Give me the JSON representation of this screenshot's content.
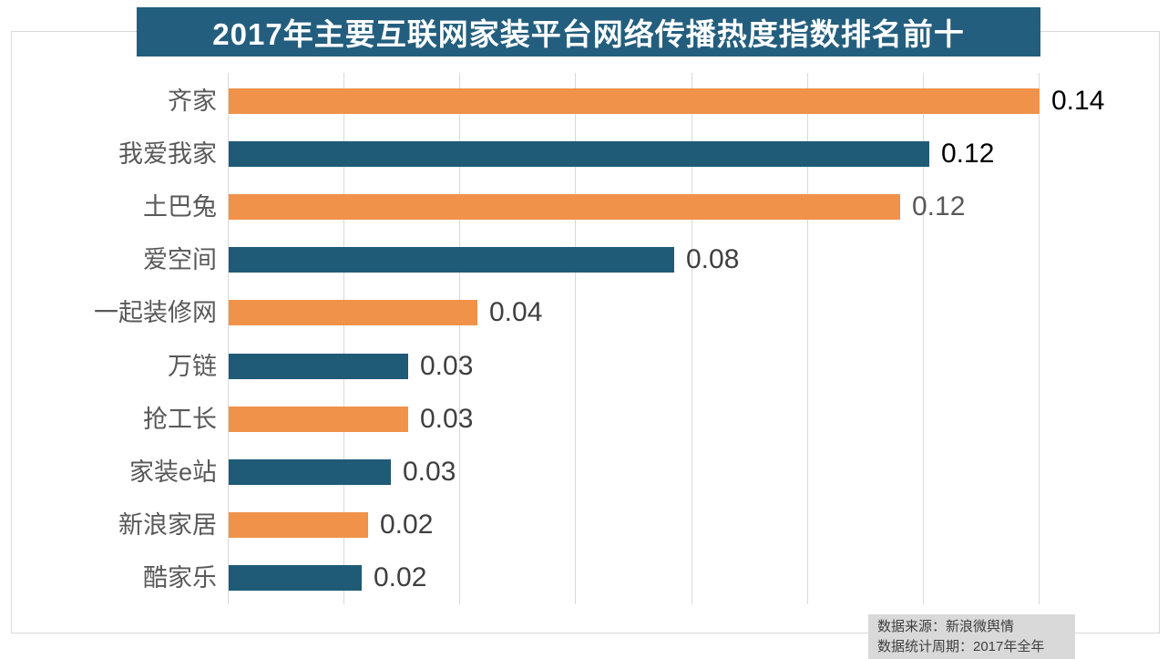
{
  "title": "2017年主要互联网家装平台网络传播热度指数排名前十",
  "colors": {
    "title_bg": "#235E7E",
    "title_text": "#FFFFFF",
    "bar_orange": "#F0924A",
    "bar_blue": "#1F5A77",
    "grid": "#D9D9D9",
    "category_label": "#595959",
    "footer_bg": "#D9D9D9",
    "footer_text": "#404040"
  },
  "chart_data": {
    "type": "bar",
    "orientation": "horizontal",
    "title": "2017年主要互联网家装平台网络传播热度指数排名前十",
    "categories": [
      "齐家",
      "我爱我家",
      "土巴兔",
      "爱空间",
      "一起装修网",
      "万链",
      "抢工长",
      "家装e站",
      "新浪家居",
      "酷家乐"
    ],
    "values": [
      0.14,
      0.12,
      0.12,
      0.08,
      0.04,
      0.03,
      0.03,
      0.03,
      0.02,
      0.02
    ],
    "value_labels": [
      "0.14",
      "0.12",
      "0.12",
      "0.08",
      "0.04",
      "0.03",
      "0.03",
      "0.03",
      "0.02",
      "0.02"
    ],
    "bar_lengths_estimated": [
      0.14,
      0.121,
      0.116,
      0.077,
      0.043,
      0.031,
      0.031,
      0.028,
      0.024,
      0.023
    ],
    "bar_colors": [
      "#F0924A",
      "#1F5A77",
      "#F0924A",
      "#1F5A77",
      "#F0924A",
      "#1F5A77",
      "#F0924A",
      "#1F5A77",
      "#F0924A",
      "#1F5A77"
    ],
    "value_label_colors": [
      "#000000",
      "#000000",
      "#595959",
      "#3F3F3F",
      "#3F3F3F",
      "#3F3F3F",
      "#3F3F3F",
      "#3F3F3F",
      "#3F3F3F",
      "#3F3F3F"
    ],
    "xlim": [
      0,
      0.14
    ],
    "gridline_interval": 0.02,
    "gridline_count": 8,
    "grid": true,
    "legend": "none",
    "xlabel": "",
    "ylabel": ""
  },
  "footer": {
    "source_line": "数据来源：新浪微舆情",
    "period_line": "数据统计周期：2017年全年"
  }
}
